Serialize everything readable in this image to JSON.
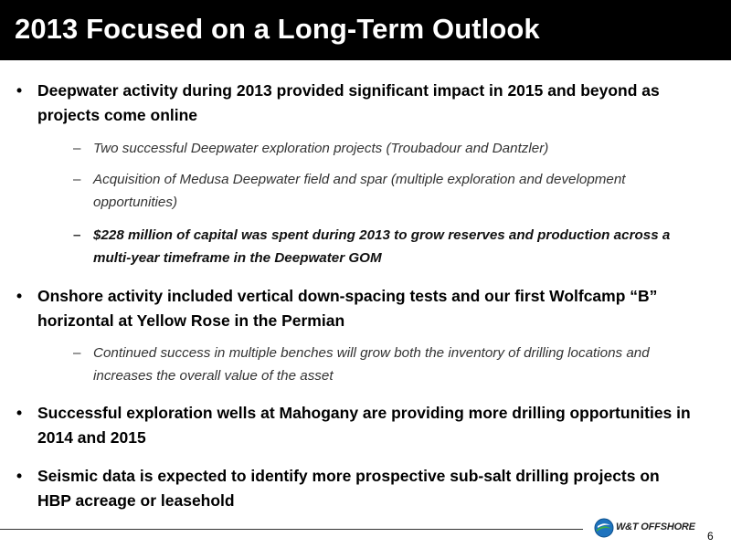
{
  "slide": {
    "title": "2013 Focused on a Long-Term Outlook",
    "bullets": [
      {
        "text": "Deepwater activity during 2013 provided significant impact in 2015 and beyond as projects come online",
        "subs": [
          "Two successful Deepwater exploration projects (Troubadour and Dantzler)",
          "Acquisition of Medusa Deepwater field and spar (multiple exploration and development opportunities)",
          "$228 million of capital was spent during 2013 to grow reserves and production across a multi-year timeframe in the Deepwater GOM"
        ]
      },
      {
        "text": "Onshore activity included vertical down-spacing tests and our first Wolfcamp “B” horizontal at Yellow Rose in the Permian",
        "subs": [
          "Continued success in multiple benches will grow both the inventory of drilling locations and increases the overall value of the asset"
        ]
      },
      {
        "text": "Successful exploration wells at Mahogany are providing more drilling opportunities in 2014 and 2015",
        "subs": []
      },
      {
        "text": "Seismic data is expected to identify more prospective sub-salt drilling projects on HBP acreage or leasehold",
        "subs": []
      }
    ],
    "bullet_glyph": "•",
    "dash_glyph": "–"
  },
  "footer": {
    "logo_text": "W&T OFFSHORE",
    "logo_icon": "wt-offshore-logo-icon",
    "page_number": "6"
  },
  "colors": {
    "title_bar": "#000000",
    "title_text": "#ffffff",
    "logo_blue": "#1e73be",
    "logo_green": "#3cae49"
  }
}
